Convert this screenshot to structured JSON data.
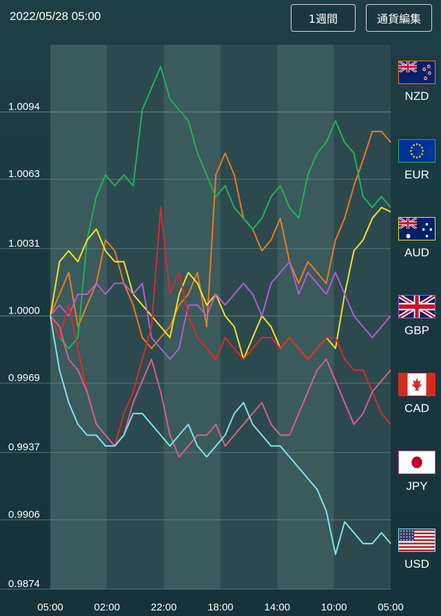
{
  "header": {
    "datetime": "2022/05/28 05:00",
    "period_button": "1週間",
    "edit_button": "通貨編集"
  },
  "legend": [
    {
      "code": "NZD",
      "border": "#f07a20"
    },
    {
      "code": "EUR",
      "border": "#22b35a"
    },
    {
      "code": "AUD",
      "border": "#f5e81e"
    },
    {
      "code": "GBP",
      "border": "#b25fd0"
    },
    {
      "code": "CAD",
      "border": "#e02828"
    },
    {
      "code": "JPY",
      "border": "#d9608e"
    },
    {
      "code": "USD",
      "border": "#7fe6ee"
    }
  ],
  "chart_data": {
    "type": "line",
    "ylim": [
      0.9874,
      1.0125
    ],
    "y_ticks": [
      "1.0094",
      "1.0063",
      "1.0031",
      "1.0000",
      "0.9969",
      "0.9937",
      "0.9906",
      "0.9874"
    ],
    "x_ticks": [
      "05:00",
      "02:00",
      "22:00",
      "18:00",
      "14:00",
      "10:00",
      "05:00"
    ],
    "grid": true,
    "series": [
      {
        "name": "NZD",
        "color": "#f07a20",
        "values": [
          1.0,
          1.001,
          1.002,
          0.9995,
          1.0005,
          1.0015,
          1.0035,
          1.003,
          1.0015,
          1.0005,
          0.999,
          0.9985,
          0.999,
          0.9995,
          1.0005,
          1.001,
          1.002,
          0.9995,
          1.0065,
          1.0075,
          1.0065,
          1.0045,
          1.004,
          1.003,
          1.0035,
          1.0045,
          1.0025,
          1.0015,
          1.0025,
          1.002,
          1.0015,
          1.0035,
          1.0045,
          1.006,
          1.0072,
          1.0085,
          1.0085,
          1.008
        ]
      },
      {
        "name": "EUR",
        "color": "#22b35a",
        "values": [
          1.0,
          0.999,
          0.9985,
          0.999,
          1.0035,
          1.0055,
          1.0065,
          1.006,
          1.0065,
          1.006,
          1.0095,
          1.0105,
          1.0115,
          1.01,
          1.0095,
          1.009,
          1.0075,
          1.0065,
          1.0055,
          1.006,
          1.005,
          1.0045,
          1.004,
          1.0045,
          1.0055,
          1.006,
          1.005,
          1.0045,
          1.0065,
          1.0075,
          1.008,
          1.009,
          1.008,
          1.0075,
          1.0055,
          1.005,
          1.0055,
          1.005
        ]
      },
      {
        "name": "AUD",
        "color": "#f5e81e",
        "values": [
          1.0,
          1.0025,
          1.003,
          1.0025,
          1.0035,
          1.004,
          1.003,
          1.0025,
          1.0025,
          1.001,
          1.0005,
          1.0,
          0.9995,
          0.999,
          1.001,
          1.002,
          1.0015,
          1.0005,
          1.001,
          1.0,
          0.9995,
          0.998,
          0.999,
          1.0,
          0.9995,
          0.9985,
          0.999,
          0.9985,
          0.998,
          0.9985,
          0.999,
          0.9985,
          1.001,
          1.003,
          1.0035,
          1.0045,
          1.005,
          1.0048
        ]
      },
      {
        "name": "GBP",
        "color": "#b25fd0",
        "values": [
          1.0,
          1.0005,
          1.0,
          1.001,
          1.001,
          1.0015,
          1.001,
          1.0015,
          1.0015,
          1.001,
          1.0015,
          0.999,
          0.9985,
          0.998,
          0.9985,
          1.0005,
          1.0005,
          1.0,
          1.001,
          1.0005,
          1.001,
          1.0015,
          1.001,
          1.0,
          1.0015,
          1.002,
          1.0025,
          1.001,
          1.002,
          1.0015,
          1.001,
          1.002,
          1.001,
          1.0,
          0.9995,
          0.999,
          0.9995,
          1.0
        ]
      },
      {
        "name": "CAD",
        "color": "#e02828",
        "values": [
          1.0,
          0.999,
          1.0005,
          0.9985,
          0.9965,
          0.995,
          0.9945,
          0.994,
          0.9955,
          0.9965,
          0.998,
          0.9995,
          1.005,
          1.001,
          1.002,
          1.0,
          0.999,
          0.9985,
          0.998,
          0.999,
          0.9985,
          0.998,
          0.9985,
          0.999,
          0.999,
          0.9985,
          0.999,
          0.9985,
          0.998,
          0.9985,
          0.999,
          0.999,
          0.998,
          0.9975,
          0.9975,
          0.9965,
          0.9955,
          0.995
        ]
      },
      {
        "name": "JPY",
        "color": "#d9608e",
        "values": [
          1.0,
          0.9995,
          0.998,
          0.9975,
          0.9965,
          0.995,
          0.9945,
          0.994,
          0.9945,
          0.996,
          0.997,
          0.998,
          0.9965,
          0.9945,
          0.9935,
          0.994,
          0.9945,
          0.9945,
          0.995,
          0.994,
          0.9945,
          0.995,
          0.9955,
          0.996,
          0.995,
          0.9945,
          0.9945,
          0.9955,
          0.9965,
          0.9975,
          0.998,
          0.997,
          0.996,
          0.995,
          0.9955,
          0.9965,
          0.997,
          0.9975
        ]
      },
      {
        "name": "USD",
        "color": "#7fe6ee",
        "values": [
          1.0,
          0.9975,
          0.996,
          0.995,
          0.9945,
          0.9945,
          0.994,
          0.994,
          0.9945,
          0.9955,
          0.9955,
          0.995,
          0.9945,
          0.994,
          0.9945,
          0.995,
          0.994,
          0.9935,
          0.994,
          0.9945,
          0.9955,
          0.996,
          0.995,
          0.9945,
          0.994,
          0.994,
          0.9935,
          0.993,
          0.9925,
          0.992,
          0.991,
          0.989,
          0.9905,
          0.99,
          0.9895,
          0.9895,
          0.99,
          0.9895
        ]
      }
    ]
  }
}
